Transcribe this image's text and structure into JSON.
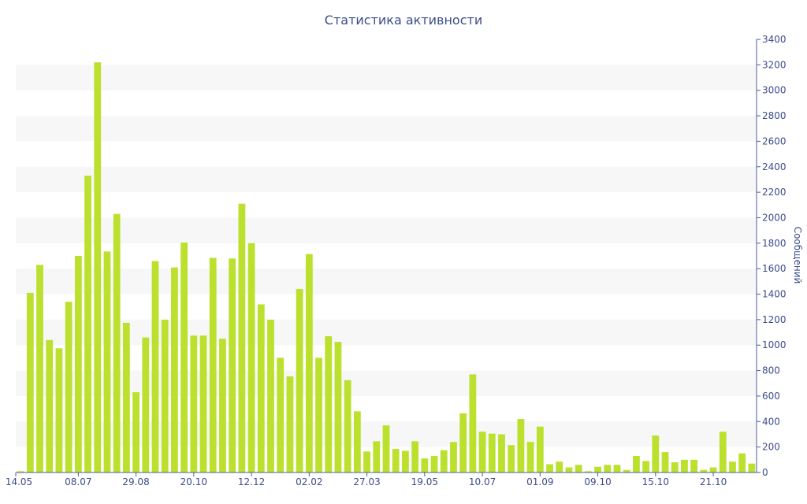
{
  "chart_data": {
    "type": "bar",
    "title": "Статистика активности",
    "ylabel": "Сообщений",
    "xlabel": "",
    "ylim": [
      0,
      3400
    ],
    "yticks": [
      0,
      200,
      400,
      600,
      800,
      1000,
      1200,
      1400,
      1600,
      1800,
      2000,
      2200,
      2400,
      2600,
      2800,
      3000,
      3200,
      3400
    ],
    "y_axis_position": "right",
    "alternating_bands": true,
    "bar_color": "#bbe02e",
    "band_color": "#f7f7f7",
    "text_color": "#3b4c8c",
    "xtick_labels": [
      {
        "index": 0,
        "label": "14.05"
      },
      {
        "index": 6,
        "label": "08.07"
      },
      {
        "index": 12,
        "label": "29.08"
      },
      {
        "index": 18,
        "label": "20.10"
      },
      {
        "index": 24,
        "label": "12.12"
      },
      {
        "index": 30,
        "label": "02.02"
      },
      {
        "index": 36,
        "label": "27.03"
      },
      {
        "index": 42,
        "label": "19.05"
      },
      {
        "index": 48,
        "label": "10.07"
      },
      {
        "index": 54,
        "label": "01.09"
      },
      {
        "index": 60,
        "label": "09.10"
      },
      {
        "index": 66,
        "label": "15.10"
      },
      {
        "index": 72,
        "label": "21.10"
      }
    ],
    "values": [
      10,
      1410,
      1630,
      1040,
      975,
      1340,
      1700,
      2330,
      3220,
      1735,
      2030,
      1175,
      630,
      1060,
      1660,
      1200,
      1610,
      1805,
      1075,
      1075,
      1685,
      1050,
      1680,
      2110,
      1800,
      1320,
      1200,
      900,
      755,
      1440,
      1715,
      900,
      1070,
      1025,
      725,
      480,
      165,
      245,
      370,
      185,
      170,
      245,
      110,
      130,
      175,
      240,
      465,
      770,
      320,
      305,
      300,
      215,
      420,
      240,
      360,
      65,
      85,
      40,
      60,
      10,
      45,
      60,
      60,
      20,
      130,
      90,
      290,
      160,
      80,
      100,
      100,
      20,
      40,
      320,
      85,
      150,
      70
    ]
  }
}
